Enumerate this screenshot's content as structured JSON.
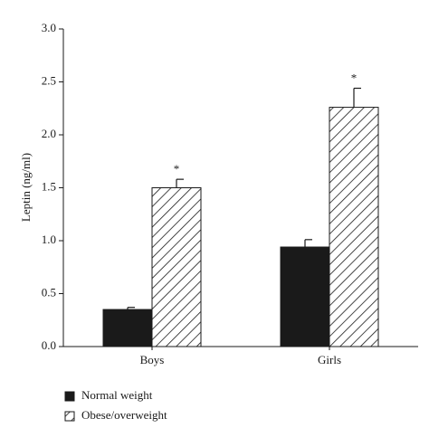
{
  "chart_data": {
    "type": "bar",
    "y_label": "Leptin (ng/ml)",
    "categories": [
      "Boys",
      "Girls"
    ],
    "series": [
      {
        "name": "Normal weight",
        "color": "#1a1a1a",
        "pattern": "solid",
        "values": [
          0.35,
          0.94
        ],
        "errors": [
          0.02,
          0.07
        ]
      },
      {
        "name": "Obese/overweight",
        "color": "#1a1a1a",
        "pattern": "hatch",
        "values": [
          1.5,
          2.26
        ],
        "errors": [
          0.08,
          0.18
        ],
        "annotations": [
          "*",
          "*"
        ]
      }
    ],
    "ylim": [
      0,
      3
    ],
    "yticks": [
      {
        "value": 0,
        "label": "0.0"
      },
      0.5,
      {
        "value": 1,
        "label": "1.0"
      },
      1.5,
      {
        "value": 2,
        "label": "2.0"
      },
      2.5,
      {
        "value": 3,
        "label": "3.0"
      }
    ],
    "legend": "bottom-left"
  }
}
